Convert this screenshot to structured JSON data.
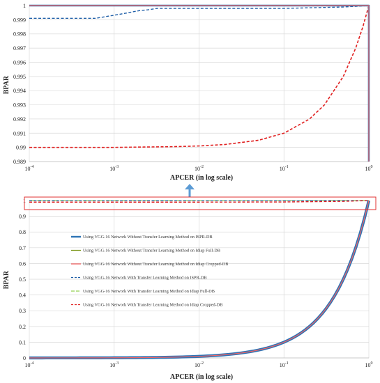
{
  "chart_data": [
    {
      "type": "line",
      "id": "zoomed",
      "xlabel": "APCER  (in log scale)",
      "ylabel": "BPAR",
      "x_scale": "log",
      "xlim": [
        0.0001,
        1
      ],
      "ylim": [
        0.989,
        1
      ],
      "x_ticks": [
        0.0001,
        0.001,
        0.01,
        0.1,
        1
      ],
      "x_tick_labels": [
        {
          "base": "10",
          "exp": "-4"
        },
        {
          "base": "10",
          "exp": "-3"
        },
        {
          "base": "10",
          "exp": "-2"
        },
        {
          "base": "10",
          "exp": "-1"
        },
        {
          "base": "10",
          "exp": "0"
        }
      ],
      "y_ticks": [
        0.989,
        0.99,
        0.991,
        0.992,
        0.993,
        0.994,
        0.995,
        0.996,
        0.997,
        0.998,
        0.999,
        1
      ],
      "y_tick_labels": [
        "0.989",
        "0.99",
        "0.991",
        "0.992",
        "0.993",
        "0.994",
        "0.995",
        "0.996",
        "0.997",
        "0.998",
        "0.999",
        "1"
      ],
      "grid": true,
      "series": [
        {
          "key": "s1",
          "x": [
            0.0001,
            0.9999,
            1
          ],
          "y": [
            1,
            1,
            0.989
          ]
        },
        {
          "key": "s2",
          "x": [
            0.0001,
            1,
            1
          ],
          "y": [
            1,
            1,
            0.989
          ]
        },
        {
          "key": "s3",
          "x": [
            0.0001,
            0.9999,
            1
          ],
          "y": [
            1,
            1,
            0.989
          ]
        },
        {
          "key": "s4",
          "x": [
            0.0001,
            0.0006,
            0.0012,
            0.002,
            0.0025,
            0.0032,
            0.004,
            0.01,
            0.1,
            0.5,
            1
          ],
          "y": [
            0.9991,
            0.9991,
            0.9994,
            0.99965,
            0.9997,
            0.9998,
            0.9998,
            0.9998,
            0.9998,
            0.9999,
            1
          ]
        },
        {
          "key": "s5",
          "x": [
            0.0001,
            1
          ],
          "y": [
            1,
            1
          ]
        },
        {
          "key": "s6",
          "x": [
            0.0001,
            0.001,
            0.005,
            0.01,
            0.02,
            0.05,
            0.1,
            0.2,
            0.3,
            0.5,
            0.7,
            0.85,
            1
          ],
          "y": [
            0.99,
            0.99,
            0.99005,
            0.9901,
            0.9902,
            0.9905,
            0.991,
            0.992,
            0.993,
            0.995,
            0.997,
            0.9985,
            1.0
          ]
        }
      ]
    },
    {
      "type": "line",
      "id": "full",
      "xlabel": "APCER  (in log scale)",
      "ylabel": "BPAR",
      "x_scale": "log",
      "xlim": [
        0.0001,
        1
      ],
      "ylim": [
        0,
        1
      ],
      "x_ticks": [
        0.0001,
        0.001,
        0.01,
        0.1,
        1
      ],
      "x_tick_labels": [
        {
          "base": "10",
          "exp": "-4"
        },
        {
          "base": "10",
          "exp": "-3"
        },
        {
          "base": "10",
          "exp": "-2"
        },
        {
          "base": "10",
          "exp": "-1"
        },
        {
          "base": "10",
          "exp": "0"
        }
      ],
      "y_ticks": [
        0,
        0.1,
        0.2,
        0.3,
        0.4,
        0.5,
        0.6,
        0.7,
        0.8,
        0.9,
        1
      ],
      "y_tick_labels": [
        "0",
        "0.1",
        "0.2",
        "0.3",
        "0.4",
        "0.5",
        "0.6",
        "0.7",
        "0.8",
        "0.9",
        "1"
      ],
      "grid": true,
      "legend_position": "left",
      "series": [
        {
          "key": "s1",
          "name": "Using VGG-16 Network Without Transfer Learning Method on ISPR-DB",
          "x": [
            0.0001,
            0.001,
            0.01,
            0.02,
            0.05,
            0.1,
            0.2,
            0.3,
            0.5,
            0.7,
            1
          ],
          "y": [
            0.0001,
            0.001,
            0.01,
            0.02,
            0.05,
            0.1,
            0.2,
            0.3,
            0.5,
            0.7,
            1
          ]
        },
        {
          "key": "s2",
          "name": "Using VGG-16 Network Without Transfer Learning Method on Idiap Full-DB",
          "x": [
            0.0001,
            0.001,
            0.01,
            0.02,
            0.05,
            0.1,
            0.2,
            0.3,
            0.5,
            0.7,
            1
          ],
          "y": [
            0.0001,
            0.001,
            0.01,
            0.02,
            0.05,
            0.1,
            0.2,
            0.3,
            0.5,
            0.7,
            1
          ]
        },
        {
          "key": "s3",
          "name": "Using VGG-16 Network Without Transfer Learning Method on Idiap Cropped-DB",
          "x": [
            0.0001,
            0.001,
            0.01,
            0.02,
            0.05,
            0.1,
            0.2,
            0.3,
            0.5,
            0.7,
            1
          ],
          "y": [
            0.0001,
            0.001,
            0.01,
            0.02,
            0.05,
            0.1,
            0.2,
            0.3,
            0.5,
            0.7,
            1
          ]
        },
        {
          "key": "s4",
          "name": "Using VGG-16 Network With Transfer Learning Method on ISPR-DB",
          "x": [
            0.0001,
            0.001,
            0.01,
            0.1,
            1
          ],
          "y": [
            0.999,
            0.9992,
            0.9998,
            0.9998,
            1
          ]
        },
        {
          "key": "s5",
          "name": "Using VGG-16 Network With Transfer Learning Method on Idiap Full-DB",
          "x": [
            0.0001,
            1
          ],
          "y": [
            1,
            1
          ]
        },
        {
          "key": "s6",
          "name": "Using VGG-16 Network With Transfer Learning Method on Idiap Cropped-DB",
          "x": [
            0.0001,
            0.01,
            0.1,
            0.5,
            1
          ],
          "y": [
            0.99,
            0.9901,
            0.991,
            0.995,
            1
          ]
        }
      ]
    }
  ],
  "styles": {
    "s1": {
      "color": "#2E74B5",
      "dash": "solid"
    },
    "s2": {
      "color": "#7F9A20",
      "dash": "solid"
    },
    "s3": {
      "color": "#F26464",
      "dash": "solid"
    },
    "s4": {
      "color": "#1F5FA8",
      "dash": "dash"
    },
    "s5": {
      "color": "#92D050",
      "dash": "longdash"
    },
    "s6": {
      "color": "#E02020",
      "dash": "dash"
    }
  },
  "colors": {
    "grid": "#D9D9D9",
    "zoom_box": "#E03030",
    "zoom_arrow": "#5B9BD5"
  }
}
